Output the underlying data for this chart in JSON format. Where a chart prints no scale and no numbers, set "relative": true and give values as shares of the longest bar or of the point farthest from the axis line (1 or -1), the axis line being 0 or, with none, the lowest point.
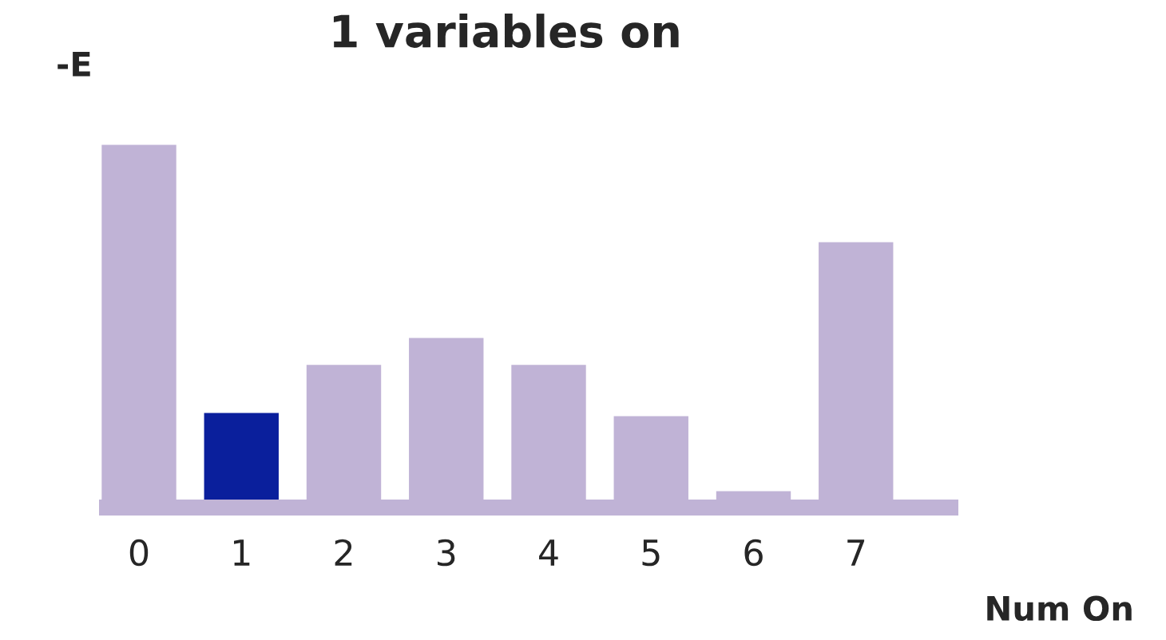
{
  "chart_data": {
    "type": "bar",
    "title": "1 variables on",
    "ylabel": "-E",
    "xlabel": "Num On",
    "relative": true,
    "categories": [
      "0",
      "1",
      "2",
      "3",
      "4",
      "5",
      "6",
      "7"
    ],
    "values": [
      1,
      0.263,
      0.395,
      0.469,
      0.395,
      0.254,
      0.048,
      0.732
    ],
    "colors": [
      "#c0b3d6",
      "#0a1f9c",
      "#c0b3d6",
      "#c0b3d6",
      "#c0b3d6",
      "#c0b3d6",
      "#c0b3d6",
      "#c0b3d6"
    ],
    "grid": false,
    "legend": false
  }
}
